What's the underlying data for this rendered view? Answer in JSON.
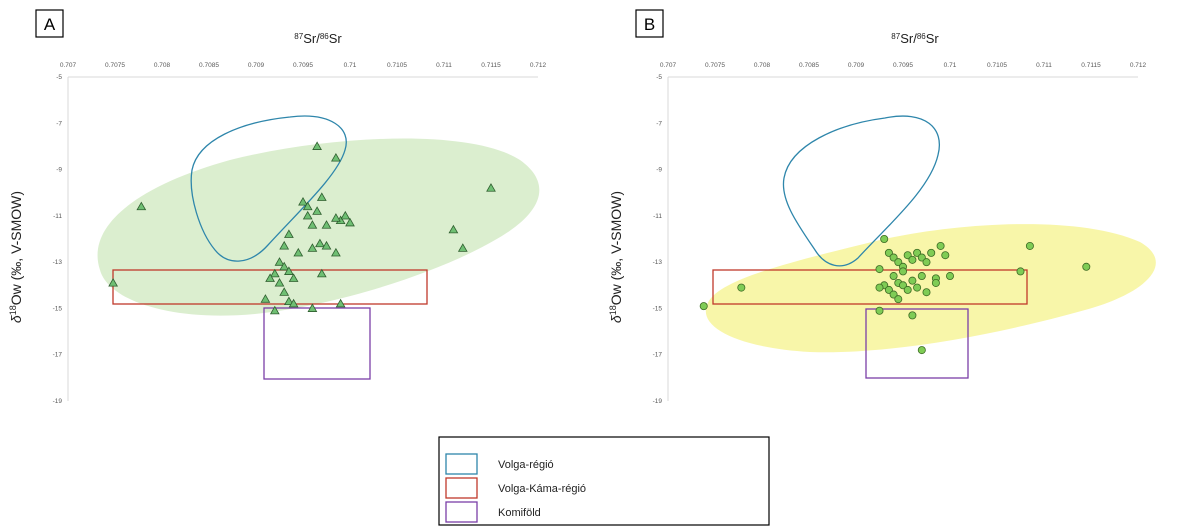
{
  "chart_data": [
    {
      "type": "scatter",
      "panel_label": "A",
      "x_title": {
        "main": "Sr/",
        "sup1": "87",
        "sup2": "86",
        "tail": "Sr"
      },
      "y_title": {
        "delta": "δ",
        "sup": "18",
        "main": "Ow (‰, V-SMOW)"
      },
      "xlim": [
        0.707,
        0.712
      ],
      "ylim": [
        -19,
        -5
      ],
      "x_ticks": [
        "0.707",
        "0.7075",
        "0.708",
        "0.7085",
        "0.709",
        "0.7095",
        "0.71",
        "0.7105",
        "0.711",
        "0.7115",
        "0.712"
      ],
      "y_ticks": [
        "-5",
        "-7",
        "-9",
        "-11",
        "-13",
        "-15",
        "-17",
        "-19"
      ],
      "x_axis_position": "top",
      "marker": "triangle",
      "marker_color": "#6fbf73",
      "region_color": "#cfe8bf",
      "points": [
        [
          0.70748,
          -13.9
        ],
        [
          0.70778,
          -10.6
        ],
        [
          0.7093,
          -12.3
        ],
        [
          0.70935,
          -11.8
        ],
        [
          0.70925,
          -13.0
        ],
        [
          0.7093,
          -13.2
        ],
        [
          0.7092,
          -13.5
        ],
        [
          0.70935,
          -13.4
        ],
        [
          0.7094,
          -13.7
        ],
        [
          0.70945,
          -12.6
        ],
        [
          0.70915,
          -13.7
        ],
        [
          0.70925,
          -13.9
        ],
        [
          0.7093,
          -14.3
        ],
        [
          0.70935,
          -14.7
        ],
        [
          0.7094,
          -14.8
        ],
        [
          0.7091,
          -14.6
        ],
        [
          0.7092,
          -15.1
        ],
        [
          0.7095,
          -10.4
        ],
        [
          0.70955,
          -10.6
        ],
        [
          0.70955,
          -11.0
        ],
        [
          0.7096,
          -11.4
        ],
        [
          0.70965,
          -10.8
        ],
        [
          0.7097,
          -10.2
        ],
        [
          0.70975,
          -11.4
        ],
        [
          0.7096,
          -12.4
        ],
        [
          0.70968,
          -12.2
        ],
        [
          0.70975,
          -12.3
        ],
        [
          0.70985,
          -12.6
        ],
        [
          0.7099,
          -11.2
        ],
        [
          0.70995,
          -11.0
        ],
        [
          0.71,
          -11.3
        ],
        [
          0.70985,
          -11.1
        ],
        [
          0.70965,
          -8.0
        ],
        [
          0.70985,
          -8.5
        ],
        [
          0.7097,
          -13.5
        ],
        [
          0.7096,
          -15.0
        ],
        [
          0.7099,
          -14.8
        ],
        [
          0.7115,
          -9.8
        ],
        [
          0.7111,
          -11.6
        ],
        [
          0.7112,
          -12.4
        ]
      ]
    },
    {
      "type": "scatter",
      "panel_label": "B",
      "x_title": {
        "main": "Sr/",
        "sup1": "87",
        "sup2": "86",
        "tail": "Sr"
      },
      "y_title": {
        "delta": "δ",
        "sup": "18",
        "main": "Ow (‰, V-SMOW)"
      },
      "xlim": [
        0.707,
        0.712
      ],
      "ylim": [
        -19,
        -5
      ],
      "x_ticks": [
        "0.707",
        "0.7075",
        "0.708",
        "0.7085",
        "0.709",
        "0.7095",
        "0.71",
        "0.7105",
        "0.711",
        "0.7115",
        "0.712"
      ],
      "y_ticks": [
        "-5",
        "-7",
        "-9",
        "-11",
        "-13",
        "-15",
        "-17",
        "-19"
      ],
      "x_axis_position": "top",
      "marker": "circle",
      "marker_color": "#7fcc55",
      "region_color": "#f7f49a",
      "points": [
        [
          0.70738,
          -14.9
        ],
        [
          0.70778,
          -14.1
        ],
        [
          0.7093,
          -12.0
        ],
        [
          0.70935,
          -12.6
        ],
        [
          0.70925,
          -13.3
        ],
        [
          0.7094,
          -12.8
        ],
        [
          0.70945,
          -13.0
        ],
        [
          0.7095,
          -13.2
        ],
        [
          0.70955,
          -12.7
        ],
        [
          0.7096,
          -12.9
        ],
        [
          0.70965,
          -12.6
        ],
        [
          0.7097,
          -12.8
        ],
        [
          0.70975,
          -13.0
        ],
        [
          0.7098,
          -12.6
        ],
        [
          0.7099,
          -12.3
        ],
        [
          0.70995,
          -12.7
        ],
        [
          0.7093,
          -14.0
        ],
        [
          0.70935,
          -14.2
        ],
        [
          0.7094,
          -14.4
        ],
        [
          0.70945,
          -13.9
        ],
        [
          0.7095,
          -14.0
        ],
        [
          0.70955,
          -14.2
        ],
        [
          0.7096,
          -13.8
        ],
        [
          0.70965,
          -14.1
        ],
        [
          0.7097,
          -13.6
        ],
        [
          0.70975,
          -14.3
        ],
        [
          0.70985,
          -13.7
        ],
        [
          0.71,
          -13.6
        ],
        [
          0.7094,
          -13.6
        ],
        [
          0.7095,
          -13.4
        ],
        [
          0.70945,
          -14.6
        ],
        [
          0.70925,
          -14.1
        ],
        [
          0.70925,
          -15.1
        ],
        [
          0.7096,
          -15.3
        ],
        [
          0.7097,
          -16.8
        ],
        [
          0.71075,
          -13.4
        ],
        [
          0.71085,
          -12.3
        ],
        [
          0.71145,
          -13.2
        ],
        [
          0.70985,
          -13.9
        ]
      ]
    }
  ],
  "legend": {
    "items": [
      {
        "label": "Volga-régió",
        "color": "#2e86ab"
      },
      {
        "label": "Volga-Káma-régió",
        "color": "#c0392b"
      },
      {
        "label": "Komiföld",
        "color": "#7b3fa8"
      }
    ]
  }
}
